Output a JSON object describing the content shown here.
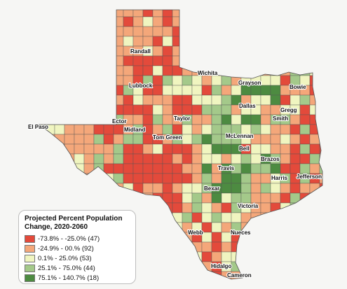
{
  "map": {
    "legend": {
      "title": "Projected Percent Population Change, 2020-2060",
      "items": [
        {
          "label": "-73.8% - -25.0% (47)",
          "color": "#e34a3b"
        },
        {
          "label": "-24.9% - 00.% (92)",
          "color": "#f4a77a"
        },
        {
          "label": "0.1% - 25.0% (53)",
          "color": "#f0f5c0"
        },
        {
          "label": "25.1% - 75.0% (44)",
          "color": "#a4c98a"
        },
        {
          "label": "75.1% - 140.7% (18)",
          "color": "#4d8b41"
        }
      ]
    },
    "counties": [
      {
        "name": "Randall"
      },
      {
        "name": "Wichita"
      },
      {
        "name": "Grayson"
      },
      {
        "name": "Bowie"
      },
      {
        "name": "Lubbock"
      },
      {
        "name": "Dallas"
      },
      {
        "name": "Gregg"
      },
      {
        "name": "Smith"
      },
      {
        "name": "Taylor"
      },
      {
        "name": "El Paso"
      },
      {
        "name": "Ector"
      },
      {
        "name": "Midland"
      },
      {
        "name": "Tom Green"
      },
      {
        "name": "McLennan"
      },
      {
        "name": "Bell"
      },
      {
        "name": "Brazos"
      },
      {
        "name": "Travis"
      },
      {
        "name": "Harris"
      },
      {
        "name": "Jefferson"
      },
      {
        "name": "Bexar"
      },
      {
        "name": "Victoria"
      },
      {
        "name": "Webb"
      },
      {
        "name": "Nueces"
      },
      {
        "name": "Hidalgo"
      },
      {
        "name": "Cameron"
      }
    ]
  }
}
